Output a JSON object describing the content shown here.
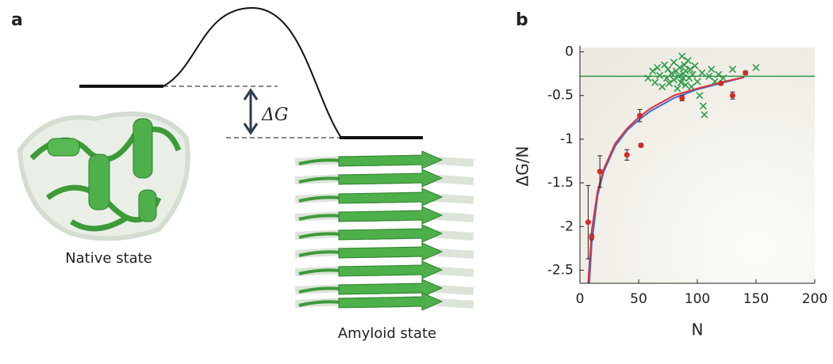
{
  "panel_labels": [
    "a",
    "b"
  ],
  "diagram": {
    "delta_g": "ΔG",
    "native_label": "Native state",
    "amyloid_label": "Amyloid state"
  },
  "chart_data": {
    "type": "scatter",
    "xlabel": "N",
    "ylabel": "ΔG/N",
    "xlim": [
      0,
      200
    ],
    "ylim": [
      -2.65,
      0.05
    ],
    "xticks": [
      0,
      50,
      100,
      150,
      200
    ],
    "yticks": [
      0,
      -0.5,
      -1,
      -1.5,
      -2,
      -2.5
    ],
    "reference_line": -0.28,
    "reference_color": "#2e9a4a",
    "series": [
      {
        "color": "#3a6fd8",
        "marker": "line",
        "x": [
          8,
          10,
          15,
          20,
          30,
          40,
          50,
          60,
          80,
          100,
          120,
          140
        ],
        "values": [
          -2.65,
          -2.2,
          -1.65,
          -1.38,
          -1.08,
          -0.9,
          -0.78,
          -0.68,
          -0.53,
          -0.43,
          -0.36,
          -0.29
        ]
      },
      {
        "color": "#e0303a",
        "marker": "line",
        "x": [
          7,
          10,
          15,
          20,
          30,
          40,
          50,
          60,
          80,
          100,
          120,
          140
        ],
        "values": [
          -2.65,
          -2.05,
          -1.6,
          -1.35,
          -1.05,
          -0.88,
          -0.75,
          -0.65,
          -0.5,
          -0.42,
          -0.35,
          -0.29
        ]
      },
      {
        "color": "#2e9a4a",
        "marker": "x",
        "x": [
          58,
          62,
          64,
          66,
          68,
          70,
          72,
          74,
          75,
          76,
          78,
          80,
          80,
          82,
          83,
          84,
          85,
          86,
          87,
          88,
          88,
          89,
          90,
          90,
          92,
          93,
          94,
          95,
          96,
          98,
          100,
          102,
          104,
          105,
          106,
          110,
          112,
          115,
          118,
          122,
          130,
          150
        ],
        "values": [
          -0.3,
          -0.22,
          -0.35,
          -0.18,
          -0.27,
          -0.4,
          -0.15,
          -0.3,
          -0.2,
          -0.36,
          -0.25,
          -0.12,
          -0.32,
          -0.22,
          -0.42,
          -0.28,
          -0.18,
          -0.35,
          -0.05,
          -0.25,
          -0.3,
          -0.15,
          -0.38,
          -0.22,
          -0.1,
          -0.3,
          -0.2,
          -0.4,
          -0.26,
          -0.16,
          -0.34,
          -0.5,
          -0.24,
          -0.62,
          -0.72,
          -0.28,
          -0.2,
          -0.34,
          -0.26,
          -0.3,
          -0.2,
          -0.18
        ]
      },
      {
        "color": "#d42a2a",
        "marker": "dot",
        "x": [
          7,
          10,
          17,
          40,
          51,
          52,
          87,
          120,
          130,
          141
        ],
        "values": [
          -1.95,
          -2.12,
          -1.37,
          -1.18,
          -0.73,
          -1.07,
          -0.53,
          -0.36,
          -0.5,
          -0.24
        ],
        "errors": [
          0.42,
          0.03,
          0.18,
          0.06,
          0.07,
          0.02,
          0.03,
          0.02,
          0.04,
          0.02
        ]
      }
    ]
  }
}
